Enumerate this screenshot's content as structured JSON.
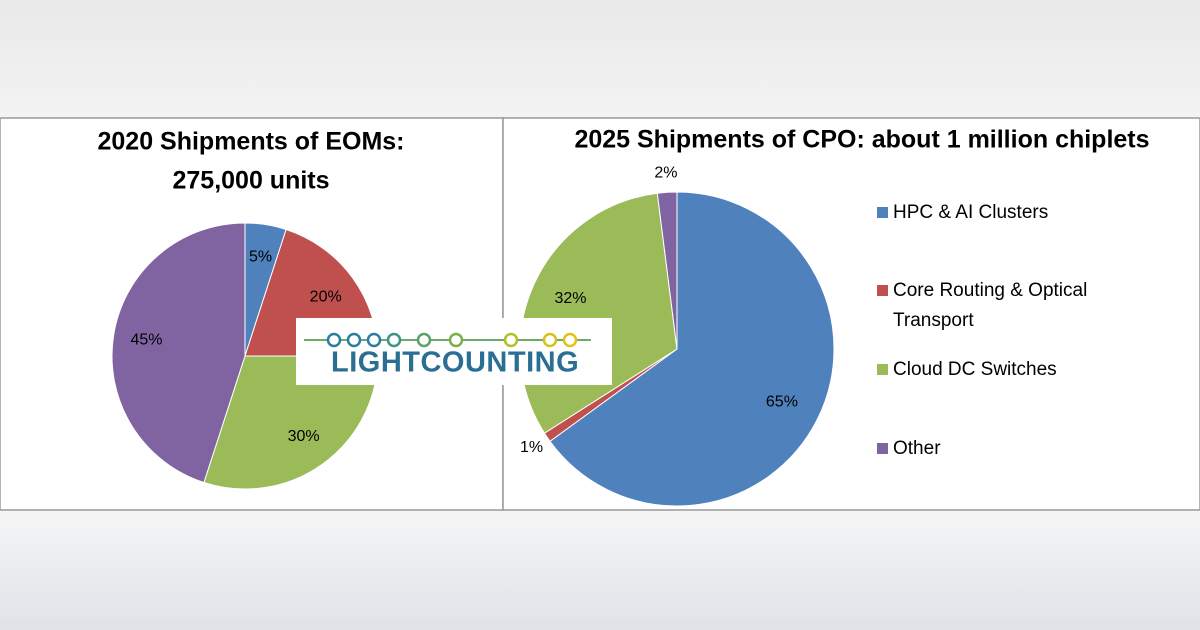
{
  "chart_data": [
    {
      "type": "pie",
      "title": [
        "2020 Shipments of EOMs:",
        "275,000 units"
      ],
      "values": [
        5,
        20,
        30,
        45
      ],
      "value_labels": [
        "5%",
        "20%",
        "30%",
        "45%"
      ],
      "colors": [
        "#4f81bd",
        "#c0504d",
        "#9bbb59",
        "#8064a2"
      ]
    },
    {
      "type": "pie",
      "title": [
        "2025 Shipments of CPO: about 1 million chiplets"
      ],
      "categories": [
        "HPC & AI Clusters",
        "Core Routing & Optical Transport",
        "Cloud DC Switches",
        "Other"
      ],
      "values": [
        65,
        1,
        32,
        2
      ],
      "value_labels": [
        "65%",
        "1%",
        "32%",
        "2%"
      ],
      "colors": [
        "#4f81bd",
        "#c0504d",
        "#9bbb59",
        "#8064a2"
      ],
      "legend": "right"
    }
  ],
  "watermark": "LIGHTCOUNTING"
}
